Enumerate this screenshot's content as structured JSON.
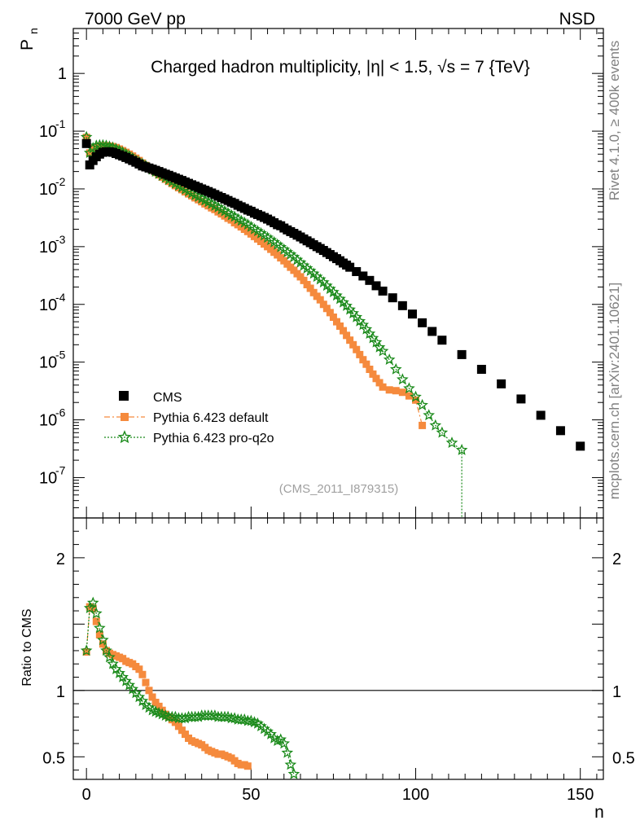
{
  "header": {
    "left": "7000 GeV pp",
    "right": "NSD"
  },
  "side_labels": {
    "rivet": "Rivet 4.1.0, ≥ 400k events",
    "mcplots": "mcplots.cern.ch [arXiv:2401.10621]"
  },
  "colors": {
    "cms": "#000000",
    "pythia_default": "#f58a3d",
    "pythia_proq2o": "#1a8a1a",
    "side_text": "#808080"
  },
  "chart_data": [
    {
      "type": "scatter",
      "panel": "main",
      "title": "Charged hadron multiplicity, |η| < 1.5, √s = 7 {TeV}",
      "ylabel": "P",
      "ylabel_sub": "n",
      "xlabel": "n",
      "yscale": "log",
      "xlim": [
        -4,
        157
      ],
      "ylim": [
        2e-08,
        6
      ],
      "ytick_labels": [
        {
          "value": 1,
          "label": "1"
        },
        {
          "value": 0.1,
          "label": "10",
          "exp": "-1"
        },
        {
          "value": 0.01,
          "label": "10",
          "exp": "-2"
        },
        {
          "value": 0.001,
          "label": "10",
          "exp": "-3"
        },
        {
          "value": 0.0001,
          "label": "10",
          "exp": "-4"
        },
        {
          "value": 1e-05,
          "label": "10",
          "exp": "-5"
        },
        {
          "value": 1e-06,
          "label": "10",
          "exp": "-6"
        },
        {
          "value": 1e-07,
          "label": "10",
          "exp": "-7"
        }
      ],
      "watermark": "(CMS_2011_I879315)",
      "legend_position": "bottom-left",
      "series": [
        {
          "name": "CMS",
          "x": [
            0,
            1,
            2,
            3,
            4,
            5,
            6,
            7,
            8,
            9,
            10,
            11,
            12,
            13,
            14,
            15,
            16,
            17,
            18,
            19,
            20,
            21,
            22,
            23,
            24,
            25,
            26,
            27,
            28,
            29,
            30,
            31,
            32,
            33,
            34,
            35,
            36,
            37,
            38,
            39,
            40,
            41,
            42,
            43,
            44,
            45,
            46,
            47,
            48,
            49,
            50,
            51,
            52,
            53,
            54,
            55,
            56,
            57,
            58,
            59,
            60,
            61,
            62,
            63,
            64,
            65,
            66,
            67,
            68,
            69,
            70,
            71,
            72,
            73,
            74,
            75,
            76,
            77,
            78,
            79,
            80,
            82,
            84,
            86,
            88,
            90,
            93,
            96,
            99,
            102,
            105,
            108,
            114,
            120,
            126,
            132,
            138,
            144,
            150
          ],
          "y": [
            0.061,
            0.026,
            0.031,
            0.036,
            0.04,
            0.043,
            0.044,
            0.044,
            0.043,
            0.041,
            0.039,
            0.037,
            0.035,
            0.033,
            0.031,
            0.029,
            0.027,
            0.025,
            0.024,
            0.023,
            0.022,
            0.021,
            0.02,
            0.019,
            0.018,
            0.0172,
            0.0163,
            0.0155,
            0.0147,
            0.014,
            0.0132,
            0.0125,
            0.0118,
            0.0112,
            0.0106,
            0.01,
            0.0095,
            0.009,
            0.0085,
            0.008,
            0.0075,
            0.0071,
            0.0067,
            0.0063,
            0.0059,
            0.0056,
            0.0052,
            0.0049,
            0.0046,
            0.0043,
            0.0041,
            0.0038,
            0.0036,
            0.0034,
            0.0032,
            0.003,
            0.0028,
            0.0026,
            0.0024,
            0.0023,
            0.0021,
            0.00195,
            0.00182,
            0.0017,
            0.00158,
            0.00147,
            0.00136,
            0.00126,
            0.00117,
            0.00108,
            0.001,
            0.00093,
            0.00086,
            0.00079,
            0.00073,
            0.00067,
            0.00062,
            0.00057,
            0.00052,
            0.00048,
            0.00044,
            0.00037,
            0.00031,
            0.00026,
            0.00021,
            0.00017,
            0.00013,
            9.5e-05,
            6.8e-05,
            4.8e-05,
            3.4e-05,
            2.4e-05,
            1.35e-05,
            7.5e-06,
            4.2e-06,
            2.3e-06,
            1.2e-06,
            6.5e-07,
            3.5e-07
          ]
        },
        {
          "name": "Pythia 6.423 default",
          "x": [
            0,
            1,
            2,
            3,
            4,
            5,
            6,
            7,
            8,
            9,
            10,
            11,
            12,
            13,
            14,
            15,
            16,
            17,
            18,
            19,
            20,
            21,
            22,
            23,
            24,
            25,
            26,
            27,
            28,
            29,
            30,
            31,
            32,
            33,
            34,
            35,
            36,
            37,
            38,
            39,
            40,
            41,
            42,
            43,
            44,
            45,
            46,
            47,
            48,
            49,
            50,
            51,
            52,
            53,
            54,
            55,
            56,
            57,
            58,
            59,
            60,
            61,
            62,
            63,
            64,
            65,
            66,
            67,
            68,
            69,
            70,
            71,
            72,
            73,
            74,
            75,
            76,
            77,
            78,
            79,
            80,
            81,
            82,
            83,
            84,
            85,
            86,
            87,
            88,
            89,
            90,
            92,
            94,
            96,
            98,
            100,
            102
          ],
          "y": [
            0.078,
            0.042,
            0.05,
            0.053,
            0.055,
            0.056,
            0.056,
            0.055,
            0.054,
            0.052,
            0.049,
            0.046,
            0.043,
            0.04,
            0.037,
            0.034,
            0.031,
            0.028,
            0.0255,
            0.023,
            0.021,
            0.0192,
            0.0175,
            0.016,
            0.0147,
            0.0135,
            0.0124,
            0.0114,
            0.0105,
            0.0097,
            0.0089,
            0.0082,
            0.0076,
            0.007,
            0.0065,
            0.006,
            0.0055,
            0.0051,
            0.0047,
            0.0044,
            0.004,
            0.0037,
            0.0034,
            0.0031,
            0.0029,
            0.0026,
            0.0024,
            0.0022,
            0.002,
            0.00183,
            0.00166,
            0.0015,
            0.00136,
            0.00123,
            0.00111,
            0.001,
            0.0009,
            0.0008,
            0.00072,
            0.00064,
            0.00057,
            0.0005,
            0.00044,
            0.00039,
            0.00034,
            0.0003,
            0.00026,
            0.00022,
            0.00019,
            0.00016,
            0.000138,
            0.00012,
            0.0001,
            8.5e-05,
            7.2e-05,
            6e-05,
            5e-05,
            4.2e-05,
            3.5e-05,
            2.9e-05,
            2.4e-05,
            2e-05,
            1.65e-05,
            1.35e-05,
            1.1e-05,
            9.2e-06,
            7.5e-06,
            6.2e-06,
            5.2e-06,
            4.4e-06,
            3.7e-06,
            3.3e-06,
            3.2e-06,
            3e-06,
            2.6e-06,
            2.2e-06,
            8e-07
          ]
        },
        {
          "name": "Pythia 6.423 pro-q2o",
          "x": [
            0,
            1,
            2,
            3,
            4,
            5,
            6,
            7,
            8,
            9,
            10,
            11,
            12,
            13,
            14,
            15,
            16,
            17,
            18,
            19,
            20,
            21,
            22,
            23,
            24,
            25,
            26,
            27,
            28,
            29,
            30,
            31,
            32,
            33,
            34,
            35,
            36,
            37,
            38,
            39,
            40,
            41,
            42,
            43,
            44,
            45,
            46,
            47,
            48,
            49,
            50,
            51,
            52,
            53,
            54,
            55,
            56,
            57,
            58,
            59,
            60,
            61,
            62,
            63,
            64,
            65,
            66,
            67,
            68,
            69,
            70,
            71,
            72,
            73,
            74,
            75,
            76,
            77,
            78,
            79,
            80,
            81,
            82,
            83,
            84,
            85,
            86,
            87,
            88,
            89,
            90,
            92,
            94,
            96,
            98,
            100,
            102,
            104,
            106,
            108,
            111,
            114
          ],
          "y": [
            0.079,
            0.042,
            0.051,
            0.056,
            0.057,
            0.057,
            0.056,
            0.054,
            0.052,
            0.049,
            0.046,
            0.043,
            0.04,
            0.037,
            0.034,
            0.031,
            0.029,
            0.027,
            0.025,
            0.023,
            0.0215,
            0.0198,
            0.0183,
            0.0169,
            0.0156,
            0.0144,
            0.0133,
            0.0123,
            0.0114,
            0.0106,
            0.0098,
            0.0091,
            0.0084,
            0.0078,
            0.0073,
            0.0068,
            0.0063,
            0.0059,
            0.0055,
            0.0051,
            0.0048,
            0.0044,
            0.0041,
            0.0038,
            0.0035,
            0.0033,
            0.003,
            0.0028,
            0.0026,
            0.0024,
            0.0022,
            0.002,
            0.00185,
            0.0017,
            0.00156,
            0.00143,
            0.0013,
            0.00119,
            0.00108,
            0.00098,
            0.00089,
            0.0008,
            0.00073,
            0.00066,
            0.00059,
            0.00053,
            0.00047,
            0.00042,
            0.00038,
            0.00034,
            0.0003,
            0.00027,
            0.00024,
            0.00021,
            0.000185,
            0.000163,
            0.000142,
            0.000124,
            0.000108,
            9.4e-05,
            8.1e-05,
            7e-05,
            6e-05,
            5.1e-05,
            4.4e-05,
            3.7e-05,
            3.1e-05,
            2.6e-05,
            2.2e-05,
            1.8e-05,
            1.55e-05,
            1.1e-05,
            7.5e-06,
            5e-06,
            3.5e-06,
            2.5e-06,
            1.8e-06,
            1.2e-06,
            8e-07,
            6e-07,
            4e-07,
            3e-07
          ]
        }
      ]
    },
    {
      "type": "line",
      "panel": "ratio",
      "ylabel": "Ratio to CMS",
      "xlabel": "n",
      "xlim": [
        -4,
        157
      ],
      "ylim": [
        0.33,
        2.3
      ],
      "x_ticks": [
        0,
        50,
        100,
        150
      ],
      "x_tick_labels": [
        "0",
        "50",
        "100",
        "150"
      ],
      "y_ticks": [
        0.5,
        1,
        2
      ],
      "y_tick_labels": [
        "0.5",
        "1",
        "2"
      ],
      "reference_line": 1,
      "series": [
        {
          "name": "Pythia 6.423 default",
          "x": [
            0,
            1,
            2,
            3,
            4,
            5,
            6,
            7,
            8,
            9,
            10,
            11,
            12,
            13,
            14,
            15,
            16,
            17,
            18,
            19,
            20,
            21,
            22,
            23,
            24,
            25,
            26,
            27,
            28,
            29,
            30,
            31,
            32,
            33,
            34,
            35,
            36,
            37,
            38,
            39,
            40,
            41,
            42,
            43,
            44,
            45,
            46,
            47,
            48,
            49
          ],
          "y": [
            1.29,
            1.63,
            1.62,
            1.52,
            1.42,
            1.35,
            1.3,
            1.28,
            1.27,
            1.26,
            1.25,
            1.24,
            1.22,
            1.21,
            1.2,
            1.18,
            1.16,
            1.12,
            1.06,
            1.0,
            0.95,
            0.91,
            0.88,
            0.85,
            0.82,
            0.8,
            0.78,
            0.76,
            0.73,
            0.7,
            0.67,
            0.64,
            0.62,
            0.61,
            0.6,
            0.59,
            0.57,
            0.55,
            0.54,
            0.53,
            0.52,
            0.52,
            0.51,
            0.5,
            0.49,
            0.47,
            0.45,
            0.44,
            0.44,
            0.43
          ]
        },
        {
          "name": "Pythia 6.423 pro-q2o",
          "x": [
            0,
            1,
            2,
            3,
            4,
            5,
            6,
            7,
            8,
            9,
            10,
            11,
            12,
            13,
            14,
            15,
            16,
            17,
            18,
            19,
            20,
            21,
            22,
            23,
            24,
            25,
            26,
            27,
            28,
            29,
            30,
            31,
            32,
            33,
            34,
            35,
            36,
            37,
            38,
            39,
            40,
            41,
            42,
            43,
            44,
            45,
            46,
            47,
            48,
            49,
            50,
            51,
            52,
            53,
            54,
            55,
            56,
            57,
            58,
            59,
            60,
            61,
            62,
            63
          ],
          "y": [
            1.3,
            1.62,
            1.66,
            1.58,
            1.47,
            1.38,
            1.3,
            1.25,
            1.2,
            1.16,
            1.13,
            1.1,
            1.07,
            1.04,
            1.01,
            0.98,
            0.95,
            0.92,
            0.89,
            0.87,
            0.85,
            0.84,
            0.83,
            0.82,
            0.81,
            0.8,
            0.8,
            0.8,
            0.79,
            0.79,
            0.79,
            0.8,
            0.8,
            0.8,
            0.8,
            0.81,
            0.81,
            0.81,
            0.81,
            0.81,
            0.8,
            0.8,
            0.8,
            0.8,
            0.79,
            0.79,
            0.78,
            0.78,
            0.78,
            0.77,
            0.77,
            0.76,
            0.75,
            0.73,
            0.71,
            0.69,
            0.67,
            0.64,
            0.62,
            0.63,
            0.6,
            0.53,
            0.44,
            0.37
          ]
        }
      ]
    }
  ]
}
